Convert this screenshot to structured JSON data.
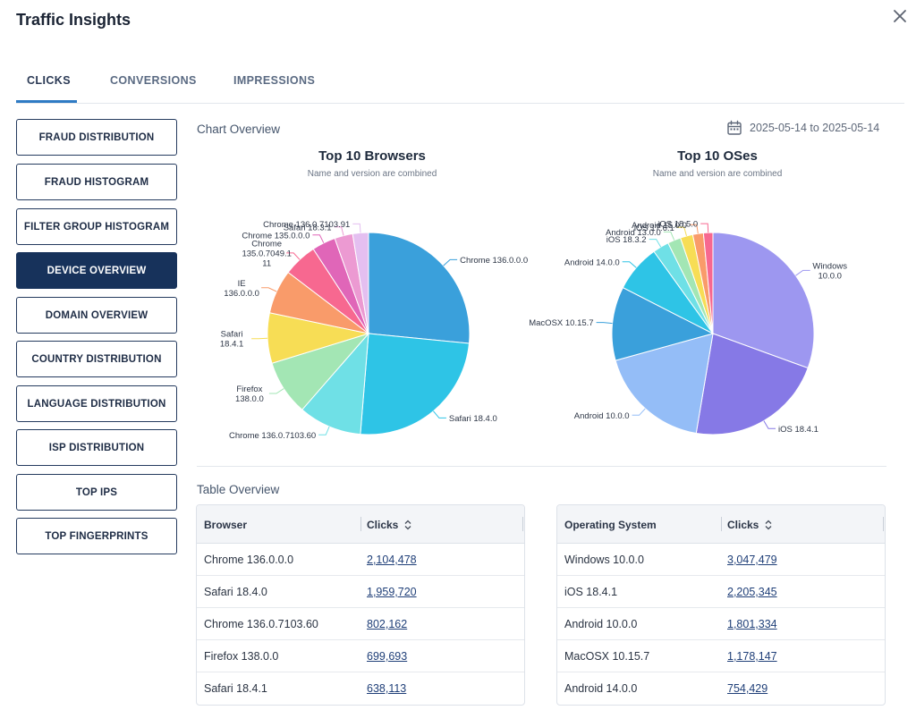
{
  "dialog": {
    "title": "Traffic Insights"
  },
  "tabs": [
    {
      "label": "CLICKS",
      "active": true
    },
    {
      "label": "CONVERSIONS",
      "active": false
    },
    {
      "label": "IMPRESSIONS",
      "active": false
    }
  ],
  "sidebar": {
    "items": [
      {
        "label": "FRAUD DISTRIBUTION"
      },
      {
        "label": "FRAUD HISTOGRAM"
      },
      {
        "label": "FILTER GROUP HISTOGRAM"
      },
      {
        "label": "DEVICE OVERVIEW",
        "active": true
      },
      {
        "label": "DOMAIN OVERVIEW"
      },
      {
        "label": "COUNTRY DISTRIBUTION"
      },
      {
        "label": "LANGUAGE DISTRIBUTION"
      },
      {
        "label": "ISP DISTRIBUTION"
      },
      {
        "label": "TOP IPS"
      },
      {
        "label": "TOP FINGERPRINTS"
      }
    ]
  },
  "main": {
    "chart_overview_label": "Chart Overview",
    "date_range": "2025-05-14 to 2025-05-14",
    "table_overview_label": "Table Overview"
  },
  "chart_data": [
    {
      "type": "pie",
      "title": "Top 10 Browsers",
      "subtitle": "Name and version are combined",
      "labels": [
        "Chrome 136.0.0.0",
        "Safari 18.4.0",
        "Chrome 136.0.7103.60",
        "Firefox 138.0.0",
        "Safari 18.4.1",
        "IE 136.0.0.0",
        "Chrome 135.0.7049.111",
        "Chrome 135.0.0.0",
        "Safari 18.3.1",
        "Chrome 136.0.7103.91"
      ],
      "display_labels": [
        [
          "Chrome 136.0.0.0"
        ],
        [
          "Safari 18.4.0"
        ],
        [
          "Chrome 136.0.7103.60"
        ],
        [
          "Firefox",
          "138.0.0"
        ],
        [
          "Safari",
          "18.4.1"
        ],
        [
          "IE",
          "136.0.0.0"
        ],
        [
          "Chrome",
          "135.0.7049.1",
          "11"
        ],
        [
          "Chrome 135.0.0.0"
        ],
        [
          "Safari 18.3.1"
        ],
        [
          "Chrome 136.0.7103.91"
        ]
      ],
      "values": [
        2104478,
        1959720,
        802162,
        699693,
        638113,
        560000,
        430000,
        300000,
        230000,
        200000
      ],
      "colors": [
        "#3aa0db",
        "#2ec4e6",
        "#6fe0e6",
        "#a3e6b4",
        "#f7dd55",
        "#f99b6a",
        "#f76890",
        "#e066b8",
        "#ec9ad2",
        "#e4bff0"
      ]
    },
    {
      "type": "pie",
      "title": "Top 10 OSes",
      "subtitle": "Name and version are combined",
      "labels": [
        "Windows 10.0.0",
        "iOS 18.4.1",
        "Android 10.0.0",
        "MacOSX 10.15.7",
        "Android 14.0.0",
        "iOS 18.3.2",
        "Android 13.0.0",
        "iOS 17.6.1",
        "Android 15.0.0",
        "iOS 18.5.0"
      ],
      "display_labels": [
        [
          "Windows",
          "10.0.0"
        ],
        [
          "iOS 18.4.1"
        ],
        [
          "Android 10.0.0"
        ],
        [
          "MacOSX 10.15.7"
        ],
        [
          "Android 14.0.0"
        ],
        [
          "iOS 18.3.2"
        ],
        [
          "Android 13.0.0"
        ],
        [
          "iOS 17.6.1"
        ],
        [
          "Android 15.0.0"
        ],
        [
          "iOS 18.5.0"
        ]
      ],
      "values": [
        3047479,
        2205345,
        1801334,
        1178147,
        754429,
        260000,
        210000,
        200000,
        170000,
        150000
      ],
      "colors": [
        "#9d97f0",
        "#8679e6",
        "#94bdf7",
        "#3aa0db",
        "#2ec4e6",
        "#6fe0e6",
        "#a3e6b4",
        "#f7dd55",
        "#f99b6a",
        "#f76890"
      ]
    }
  ],
  "tables": {
    "browser": {
      "col1": "Browser",
      "col2": "Clicks",
      "rows": [
        {
          "name": "Chrome 136.0.0.0",
          "clicks": "2,104,478"
        },
        {
          "name": "Safari 18.4.0",
          "clicks": "1,959,720"
        },
        {
          "name": "Chrome 136.0.7103.60",
          "clicks": "802,162"
        },
        {
          "name": "Firefox 138.0.0",
          "clicks": "699,693"
        },
        {
          "name": "Safari 18.4.1",
          "clicks": "638,113"
        }
      ]
    },
    "os": {
      "col1": "Operating System",
      "col2": "Clicks",
      "rows": [
        {
          "name": "Windows 10.0.0",
          "clicks": "3,047,479"
        },
        {
          "name": "iOS 18.4.1",
          "clicks": "2,205,345"
        },
        {
          "name": "Android 10.0.0",
          "clicks": "1,801,334"
        },
        {
          "name": "MacOSX 10.15.7",
          "clicks": "1,178,147"
        },
        {
          "name": "Android 14.0.0",
          "clicks": "754,429"
        }
      ]
    }
  },
  "icons": {
    "close": "close-icon",
    "calendar": "calendar-icon",
    "sort": "sort-icon"
  },
  "colors": {
    "active_nav": "#17325b",
    "tab_underline": "#2e7bc4",
    "link": "#1f3f78"
  }
}
